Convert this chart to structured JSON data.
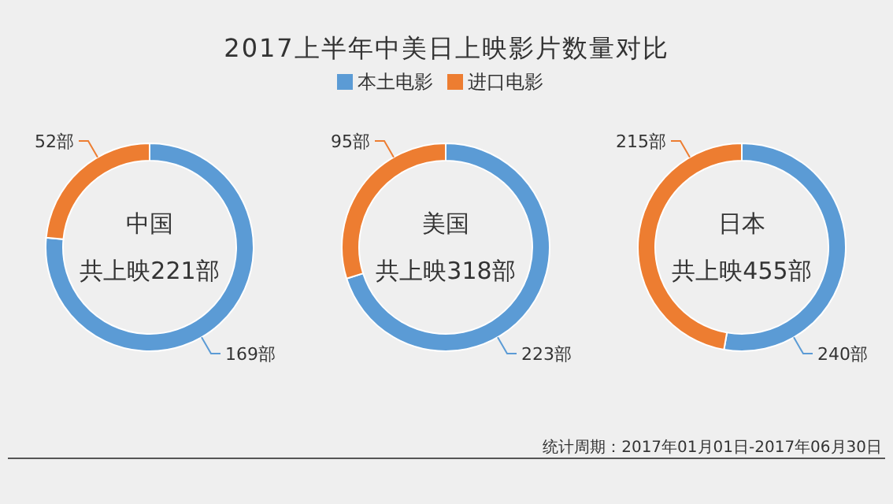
{
  "chart_data": [
    {
      "type": "donut",
      "categories": [
        null,
        null
      ],
      "values": [
        169,
        52
      ],
      "value_labels": [
        "169部",
        "52部"
      ],
      "colors": [
        "#5b9bd5",
        "#ed7d31"
      ],
      "annotations": [
        "中国",
        "共上映221部"
      ]
    },
    {
      "type": "donut",
      "title": "2017上半年中美日上映影片数量对比",
      "legend": "top",
      "categories": [
        "本土电影",
        "进口电影"
      ],
      "values": [
        223,
        95
      ],
      "value_labels": [
        "223部",
        "95部"
      ],
      "colors": [
        "#5b9bd5",
        "#ed7d31"
      ],
      "annotations": [
        "美国",
        "共上映318部"
      ]
    },
    {
      "type": "donut",
      "categories": [
        null,
        null
      ],
      "values": [
        240,
        215
      ],
      "value_labels": [
        "240部",
        "215部"
      ],
      "colors": [
        "#5b9bd5",
        "#ed7d31"
      ],
      "annotations": [
        "日本",
        "共上映455部",
        "统计周期：2017年01月01日-2017年06月30日"
      ]
    }
  ]
}
